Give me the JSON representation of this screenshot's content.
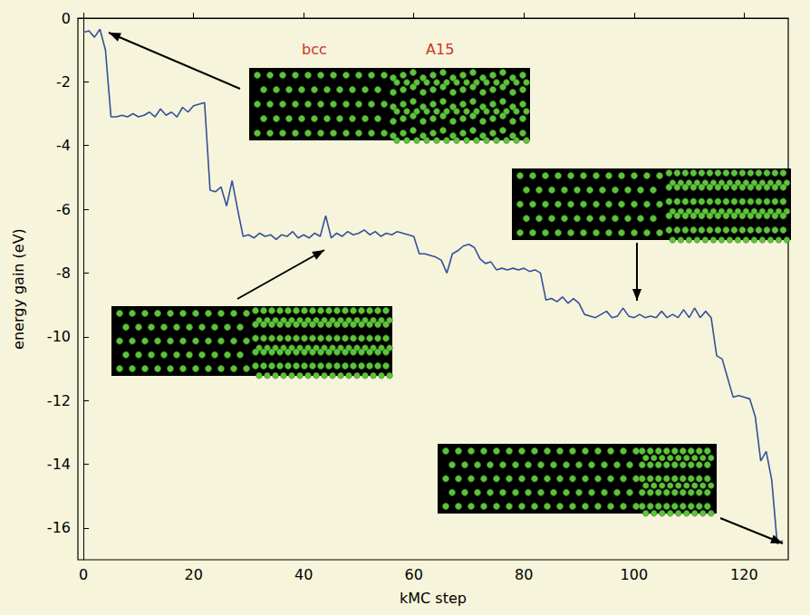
{
  "chart_data": {
    "type": "line",
    "x_label": "kMC step",
    "y_label": "energy gain (eV)",
    "annotations": [
      "bcc",
      "A15"
    ],
    "color": "#34509c",
    "grid": false,
    "xlim": [
      -1,
      128
    ],
    "ylim": [
      -17,
      0
    ],
    "xticks": [
      0,
      20,
      40,
      60,
      80,
      100,
      120
    ],
    "yticks": [
      -16,
      -14,
      -12,
      -10,
      -8,
      -6,
      -4,
      -2,
      0
    ],
    "x": [
      0,
      1,
      2,
      3,
      4,
      5,
      6,
      7,
      8,
      9,
      10,
      11,
      12,
      13,
      14,
      15,
      16,
      17,
      18,
      19,
      20,
      21,
      22,
      23,
      24,
      25,
      26,
      27,
      28,
      29,
      30,
      31,
      32,
      33,
      34,
      35,
      36,
      37,
      38,
      39,
      40,
      41,
      42,
      43,
      44,
      45,
      46,
      47,
      48,
      49,
      50,
      51,
      52,
      53,
      54,
      55,
      56,
      57,
      58,
      59,
      60,
      61,
      62,
      63,
      64,
      65,
      66,
      67,
      68,
      69,
      70,
      71,
      72,
      73,
      74,
      75,
      76,
      77,
      78,
      79,
      80,
      81,
      82,
      83,
      84,
      85,
      86,
      87,
      88,
      89,
      90,
      91,
      92,
      93,
      94,
      95,
      96,
      97,
      98,
      99,
      100,
      101,
      102,
      103,
      104,
      105,
      106,
      107,
      108,
      109,
      110,
      111,
      112,
      113,
      114,
      115,
      116,
      117,
      118,
      119,
      120,
      121,
      122,
      123,
      124,
      125,
      126,
      127
    ],
    "values": [
      -0.45,
      -0.4,
      -0.6,
      -0.35,
      -1.0,
      -3.1,
      -3.1,
      -3.05,
      -3.1,
      -3.0,
      -3.1,
      -3.05,
      -2.95,
      -3.1,
      -2.85,
      -3.05,
      -2.95,
      -3.1,
      -2.8,
      -2.95,
      -2.75,
      -2.7,
      -2.65,
      -5.4,
      -5.45,
      -5.3,
      -5.9,
      -5.1,
      -6.0,
      -6.85,
      -6.8,
      -6.9,
      -6.75,
      -6.85,
      -6.8,
      -6.95,
      -6.8,
      -6.85,
      -6.7,
      -6.9,
      -6.8,
      -6.9,
      -6.75,
      -6.85,
      -6.2,
      -6.9,
      -6.75,
      -6.85,
      -6.7,
      -6.8,
      -6.75,
      -6.65,
      -6.8,
      -6.7,
      -6.85,
      -6.75,
      -6.8,
      -6.7,
      -6.75,
      -6.8,
      -6.85,
      -7.4,
      -7.4,
      -7.45,
      -7.5,
      -7.6,
      -8.0,
      -7.4,
      -7.3,
      -7.15,
      -7.1,
      -7.2,
      -7.55,
      -7.7,
      -7.65,
      -7.9,
      -7.85,
      -7.9,
      -7.85,
      -7.9,
      -7.85,
      -7.95,
      -7.9,
      -8.0,
      -8.85,
      -8.8,
      -8.9,
      -8.75,
      -8.95,
      -8.8,
      -8.95,
      -9.3,
      -9.35,
      -9.4,
      -9.3,
      -9.2,
      -9.4,
      -9.35,
      -9.1,
      -9.35,
      -9.4,
      -9.3,
      -9.4,
      -9.35,
      -9.4,
      -9.2,
      -9.4,
      -9.3,
      -9.4,
      -9.15,
      -9.4,
      -9.1,
      -9.4,
      -9.2,
      -9.4,
      -10.6,
      -10.7,
      -11.3,
      -11.9,
      -11.85,
      -11.9,
      -11.95,
      -12.5,
      -13.9,
      -13.6,
      -14.5,
      -16.5,
      -16.4
    ]
  }
}
